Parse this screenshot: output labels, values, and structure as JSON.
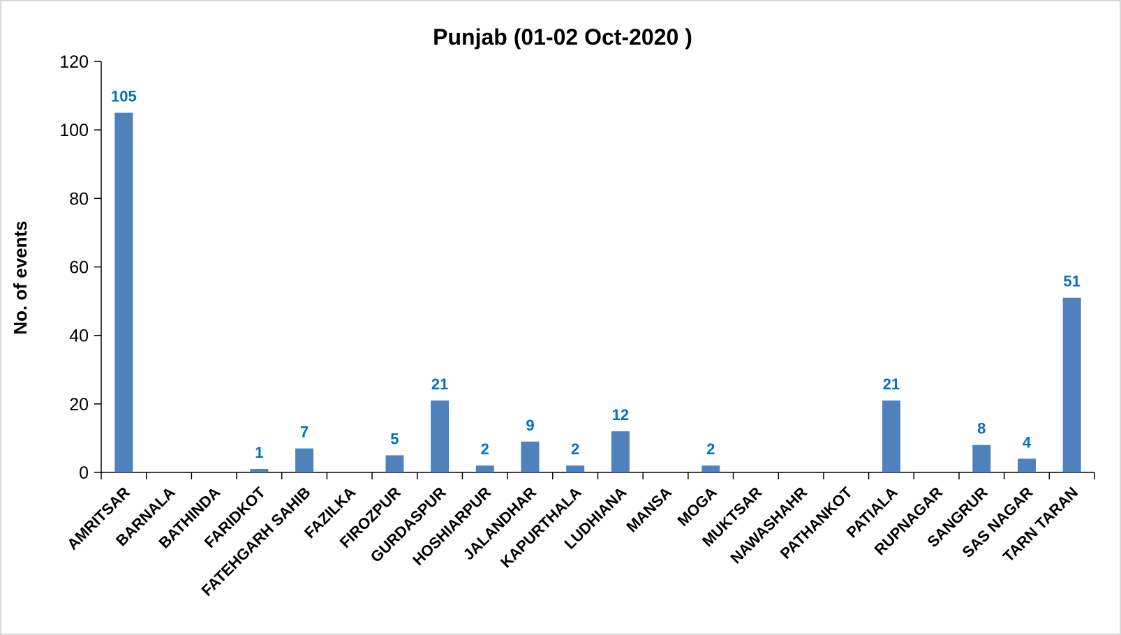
{
  "chart_data": {
    "type": "bar",
    "title": "Punjab (01-02 Oct-2020 )",
    "xlabel": "",
    "ylabel": "No. of events",
    "ylim": [
      0,
      120
    ],
    "yticks": [
      0,
      20,
      40,
      60,
      80,
      100,
      120
    ],
    "grid": false,
    "legend": "none",
    "bar_color": "#4f81bd",
    "label_color": "#0070c0",
    "categories": [
      "AMRITSAR",
      "BARNALA",
      "BATHINDA",
      "FARIDKOT",
      "FATEHGARH SAHIB",
      "FAZILKA",
      "FIROZPUR",
      "GURDASPUR",
      "HOSHIARPUR",
      "JALANDHAR",
      "KAPURTHALA",
      "LUDHIANA",
      "MANSA",
      "MOGA",
      "MUKTSAR",
      "NAWASHAHR",
      "PATHANKOT",
      "PATIALA",
      "RUPNAGAR",
      "SANGRUR",
      "SAS NAGAR",
      "TARN TARAN"
    ],
    "values": [
      105,
      0,
      0,
      1,
      7,
      0,
      5,
      21,
      2,
      9,
      2,
      12,
      0,
      2,
      0,
      0,
      0,
      21,
      0,
      8,
      4,
      51
    ],
    "data_labels": [
      "105",
      "",
      "",
      "1",
      "7",
      "",
      "5",
      "21",
      "2",
      "9",
      "2",
      "12",
      "",
      "2",
      "",
      "",
      "",
      "21",
      "",
      "8",
      "4",
      "51"
    ]
  }
}
